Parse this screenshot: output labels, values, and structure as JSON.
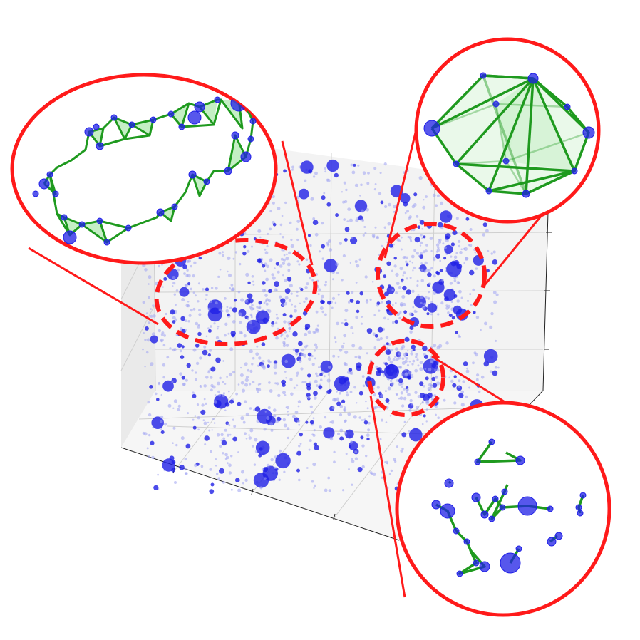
{
  "figure": {
    "colors": {
      "point": "#1f1fe6",
      "point_faint": "#9fa3f2",
      "highlight": "#ff1a1a",
      "graph_edge": "#1f9a1f",
      "graph_fill": "#9fe59f",
      "pane_left": "#eaeaea",
      "pane_right": "#f3f3f3",
      "pane_floor": "#f6f6f6",
      "grid": "#cfcfcf",
      "axis_line": "#222222",
      "background": "#ffffff"
    },
    "panels": [
      {
        "id": "loop-panel",
        "structure": "cycle",
        "icon": "ring-graph"
      },
      {
        "id": "cavity-panel",
        "structure": "void",
        "icon": "polyhedron-graph"
      },
      {
        "id": "components-panel",
        "structure": "connected-components",
        "icon": "scattered-graph"
      }
    ],
    "point_cloud": {
      "approx_points": 1800,
      "style": "3d-scatter",
      "grid": true
    }
  }
}
